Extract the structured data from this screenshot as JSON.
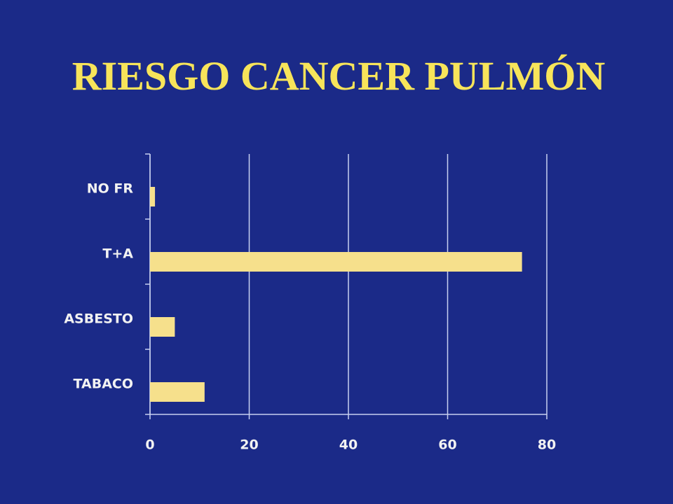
{
  "chart_data": {
    "type": "hbar",
    "title": "RIESGO CANCER PULMÓN",
    "categories": [
      "NO FR",
      "T+A",
      "ASBESTO",
      "TABACO"
    ],
    "values": [
      1,
      75,
      5,
      11
    ],
    "color": "#f6e08c",
    "xlim": [
      0,
      80
    ],
    "xticks": [
      0,
      20,
      40,
      60,
      80
    ],
    "grid": true
  }
}
